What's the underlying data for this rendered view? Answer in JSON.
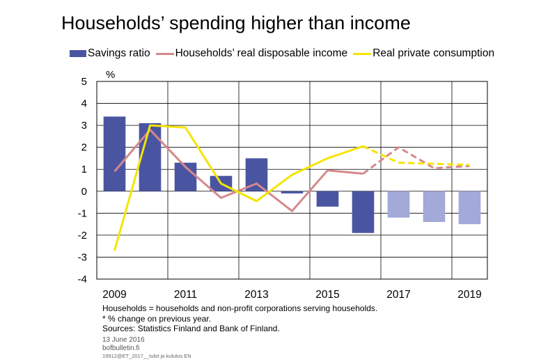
{
  "title": "Households’ spending higher than income",
  "legend": [
    {
      "label": "Savings ratio",
      "color": "#4a55a2",
      "kind": "bar"
    },
    {
      "label": "Households’ real disposable income",
      "color": "#d4888b",
      "kind": "line"
    },
    {
      "label": "Real private consumption",
      "color": "#f5e400",
      "kind": "line"
    }
  ],
  "notes": [
    "Households = households and non-profit corporations serving households.",
    "* % change  on previous year.",
    "Sources: Statistics Finland and Bank of Finland."
  ],
  "meta": {
    "date": "13 June 2016",
    "site": "bofbulletin.fi",
    "code": "19912@ET_2017__tulot ja kulutus EN"
  },
  "chart_data": {
    "type": "bar",
    "ylabel": "%",
    "ylim": [
      -4,
      5
    ],
    "yticks": [
      5,
      4,
      3,
      2,
      1,
      0,
      -1,
      -2,
      -3,
      -4
    ],
    "x": [
      2009,
      2010,
      2011,
      2012,
      2013,
      2014,
      2015,
      2016,
      2017,
      2018,
      2019
    ],
    "xtick_labels": [
      "2009",
      "2011",
      "2013",
      "2015",
      "2017",
      "2019"
    ],
    "grid": true,
    "legend_position": "top",
    "series": [
      {
        "name": "Savings ratio",
        "type": "bar",
        "color": "#4a55a2",
        "forecast_color": "#a3a9d8",
        "forecast_from": 2017,
        "values": [
          3.4,
          3.1,
          1.3,
          0.7,
          1.5,
          -0.1,
          -0.7,
          -1.9,
          -1.2,
          -1.4,
          -1.5
        ]
      },
      {
        "name": "Households’ real disposable income",
        "type": "line",
        "color": "#d4888b",
        "forecast_from": 2016,
        "values": [
          0.9,
          2.8,
          1.1,
          -0.3,
          0.35,
          -0.9,
          0.95,
          0.8,
          2.0,
          1.05,
          1.15
        ]
      },
      {
        "name": "Real private consumption",
        "type": "line",
        "color": "#f5e400",
        "forecast_from": 2016,
        "values": [
          -2.7,
          3.0,
          2.9,
          0.35,
          -0.45,
          0.75,
          1.5,
          2.05,
          1.3,
          1.25,
          1.2
        ]
      }
    ]
  }
}
